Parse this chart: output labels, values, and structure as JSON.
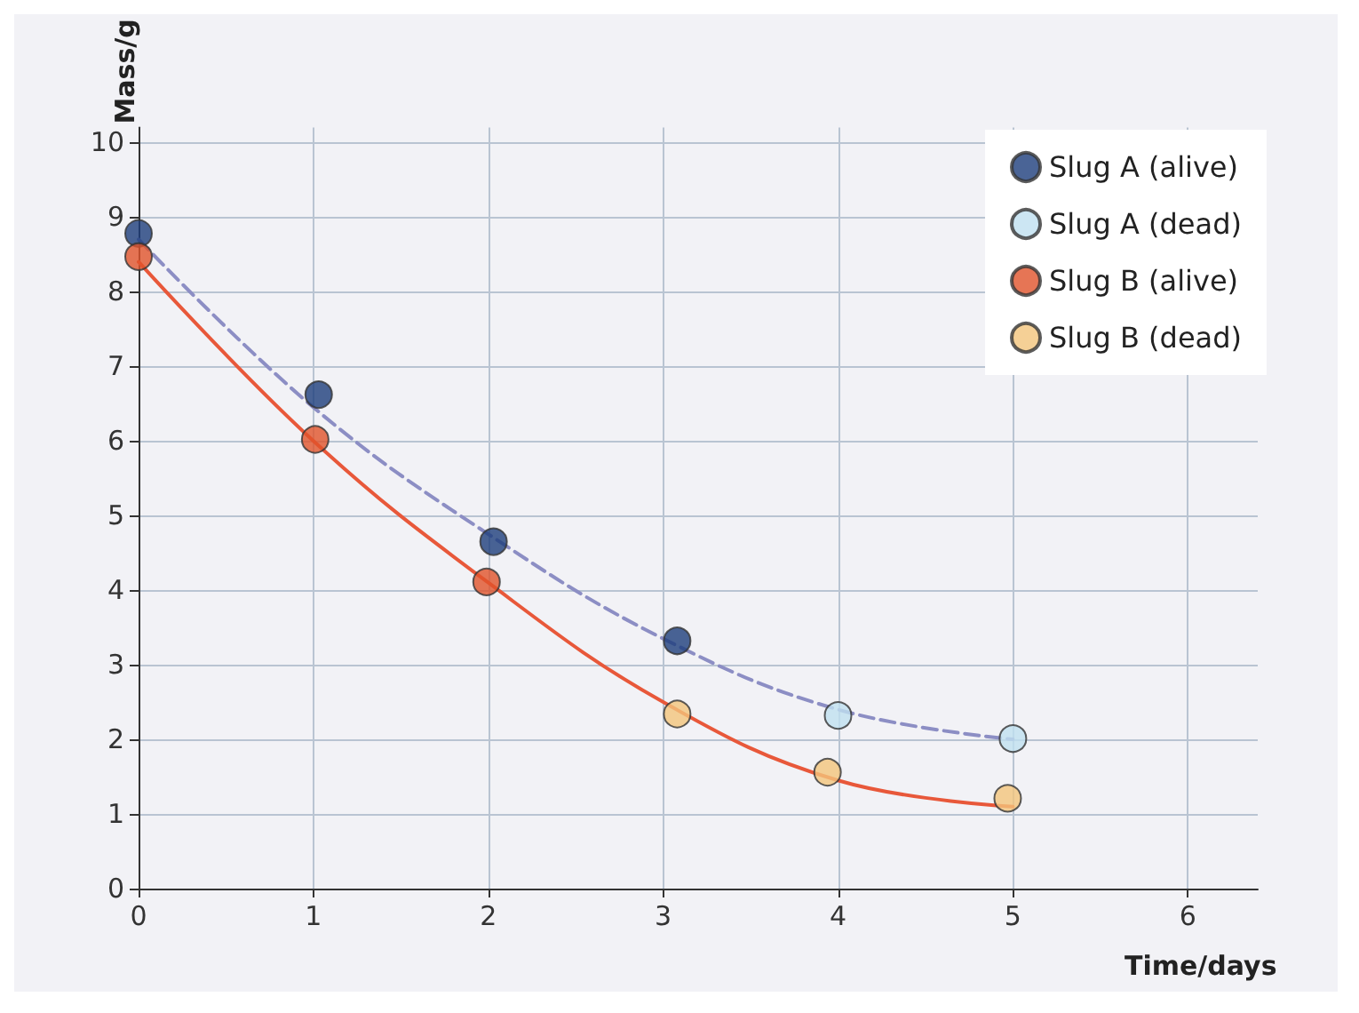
{
  "chart_data": {
    "type": "scatter",
    "xlabel": "Time/days",
    "ylabel": "Mass/g",
    "xlim": [
      0,
      6.4
    ],
    "ylim": [
      0,
      10.2
    ],
    "xticks": [
      0,
      1,
      2,
      3,
      4,
      5,
      6
    ],
    "yticks": [
      0,
      1,
      2,
      3,
      4,
      5,
      6,
      7,
      8,
      9,
      10
    ],
    "grid": true,
    "legend": "top right",
    "marker": "circle",
    "series": [
      {
        "name": "Slug A (alive)",
        "color": "#1d3d7c",
        "x": [
          0,
          1.03,
          2.03,
          3.08
        ],
        "values": [
          8.78,
          6.62,
          4.65,
          3.32
        ]
      },
      {
        "name": "Slug A (dead)",
        "color": "#bfe0f0",
        "x": [
          4.0,
          5.0
        ],
        "values": [
          2.32,
          2.01
        ]
      },
      {
        "name": "Slug B (alive)",
        "color": "#e0532b",
        "x": [
          0,
          1.01,
          1.99
        ],
        "values": [
          8.47,
          6.02,
          4.11
        ]
      },
      {
        "name": "Slug B (dead)",
        "color": "#f3c47c",
        "x": [
          3.08,
          3.94,
          4.97
        ],
        "values": [
          2.34,
          1.56,
          1.21
        ]
      },
      {
        "type": "line",
        "color": "#8c8ec4",
        "line_style": "dashed",
        "marker": "none",
        "x": [
          0,
          1,
          2,
          3,
          4,
          5
        ],
        "values": [
          8.7,
          6.45,
          4.75,
          3.35,
          2.4,
          2.0
        ]
      },
      {
        "type": "line",
        "color": "#e8583a",
        "line_style": "solid",
        "marker": "none",
        "x": [
          0,
          1,
          2,
          3,
          4,
          5
        ],
        "values": [
          8.4,
          6.0,
          4.1,
          2.5,
          1.45,
          1.1
        ]
      }
    ]
  }
}
